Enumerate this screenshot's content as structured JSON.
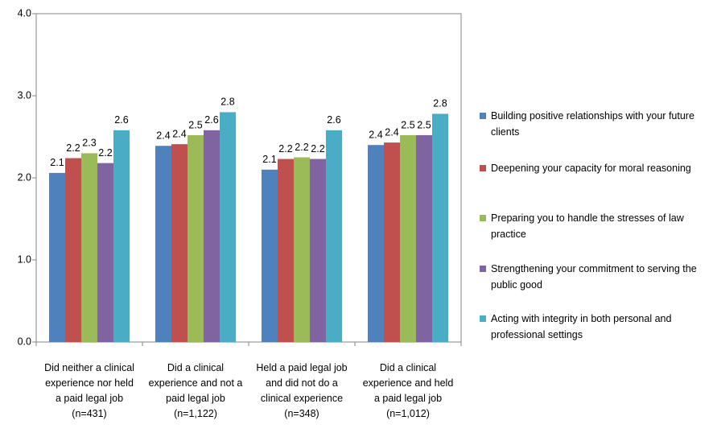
{
  "chart_data": {
    "type": "bar",
    "categories": [
      [
        "Did neither a clinical",
        "experience nor held",
        "a paid legal job",
        "(n=431)"
      ],
      [
        "Did a clinical",
        "experience and not a",
        "paid legal job",
        "(n=1,122)"
      ],
      [
        "Held a paid legal job",
        "and did not do a",
        "clinical experience",
        "(n=348)"
      ],
      [
        "Did a clinical",
        "experience and held",
        "a paid legal job",
        "(n=1,012)"
      ]
    ],
    "series": [
      {
        "name": "Building positive relationships with your future clients",
        "color": "#4f81bd",
        "values": [
          2.06,
          2.39,
          2.1,
          2.4
        ],
        "value_labels": [
          "2.1",
          "2.4",
          "2.1",
          "2.4"
        ]
      },
      {
        "name": "Deepening your capacity for moral reasoning",
        "color": "#c0504d",
        "values": [
          2.24,
          2.41,
          2.23,
          2.43
        ],
        "value_labels": [
          "2.2",
          "2.4",
          "2.2",
          "2.4"
        ]
      },
      {
        "name": "Preparing you to handle the stresses of law practice",
        "color": "#9bbb59",
        "values": [
          2.3,
          2.52,
          2.25,
          2.52
        ],
        "value_labels": [
          "2.3",
          "2.5",
          "2.2",
          "2.5"
        ]
      },
      {
        "name": "Strengthening your commitment  to serving the public good",
        "color": "#8064a2",
        "values": [
          2.18,
          2.58,
          2.23,
          2.52
        ],
        "value_labels": [
          "2.2",
          "2.6",
          "2.2",
          "2.5"
        ]
      },
      {
        "name": "Acting with integrity in both personal and professional settings",
        "color": "#4bacc6",
        "values": [
          2.58,
          2.8,
          2.58,
          2.78
        ],
        "value_labels": [
          "2.6",
          "2.8",
          "2.6",
          "2.8"
        ]
      }
    ],
    "ylim": [
      0,
      4
    ],
    "yticks": [
      {
        "value": 0,
        "label": "0.0"
      },
      {
        "value": 1,
        "label": "1.0"
      },
      {
        "value": 2,
        "label": "2.0"
      },
      {
        "value": 3,
        "label": "3.0"
      },
      {
        "value": 4,
        "label": "4.0"
      }
    ],
    "grid": false
  }
}
